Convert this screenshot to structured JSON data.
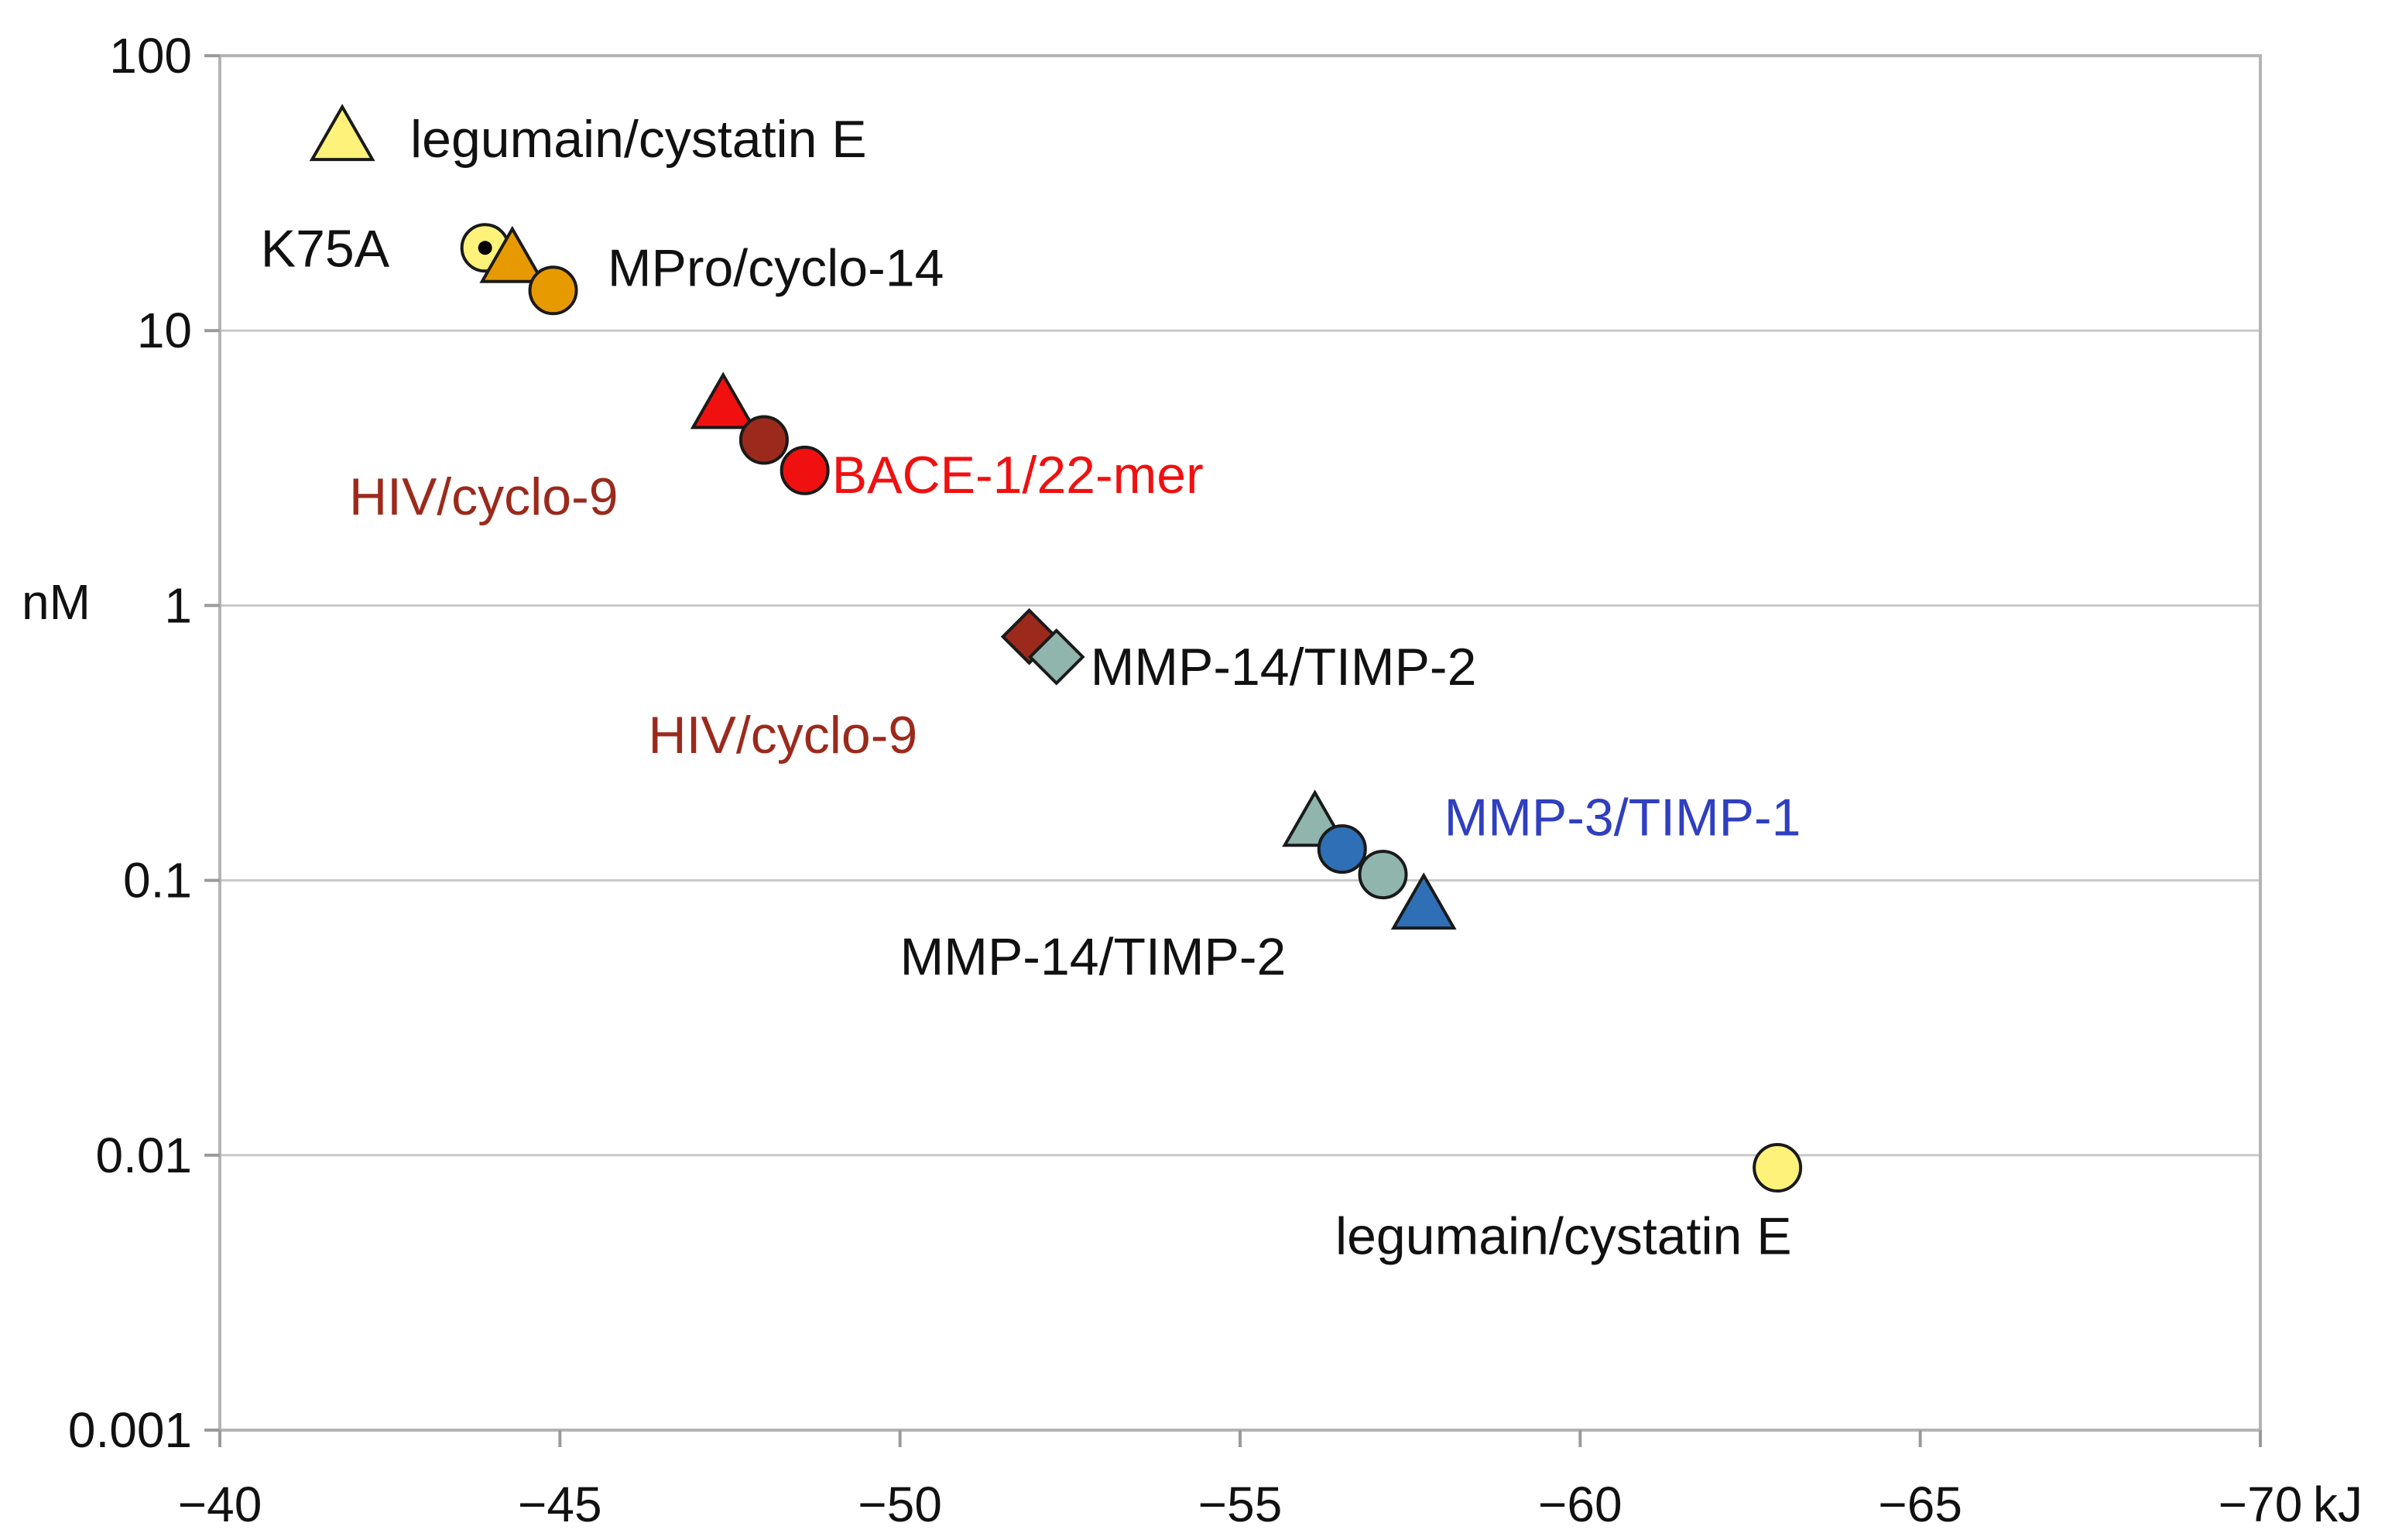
{
  "chart_data": {
    "type": "scatter",
    "title": "",
    "xlabel": "kJ",
    "ylabel": "nM",
    "y_scale": "log",
    "xlim": [
      -40,
      -70
    ],
    "ylim": [
      0.001,
      100
    ],
    "x_ticks": [
      "−40",
      "−45",
      "−50",
      "−55",
      "−60",
      "−65",
      "−70"
    ],
    "x_tick_values": [
      -40,
      -45,
      -50,
      -55,
      -60,
      -65,
      -70
    ],
    "y_ticks": [
      "100",
      "10",
      "1",
      "0.1",
      "0.01",
      "0.001"
    ],
    "y_tick_values": [
      100,
      10,
      1,
      0.1,
      0.01,
      0.001
    ],
    "grid": "horizontal",
    "points": [
      {
        "x": -41.8,
        "y": 50,
        "shape": "triangle",
        "color": "#fff27a"
      },
      {
        "x": -43.9,
        "y": 20,
        "shape": "circle-dot",
        "color": "#fff27a"
      },
      {
        "x": -44.3,
        "y": 18,
        "shape": "triangle",
        "color": "#e69a00"
      },
      {
        "x": -44.9,
        "y": 14,
        "shape": "circle",
        "color": "#e69a00"
      },
      {
        "x": -47.4,
        "y": 5.3,
        "shape": "triangle",
        "color": "#f01010"
      },
      {
        "x": -48.0,
        "y": 4.0,
        "shape": "circle",
        "color": "#9b2a1c"
      },
      {
        "x": -48.6,
        "y": 3.1,
        "shape": "circle",
        "color": "#f01010"
      },
      {
        "x": -51.9,
        "y": 0.77,
        "shape": "diamond",
        "color": "#9b2a1c"
      },
      {
        "x": -52.3,
        "y": 0.65,
        "shape": "diamond",
        "color": "#8fb5ad"
      },
      {
        "x": -56.1,
        "y": 0.16,
        "shape": "triangle",
        "color": "#8fb5ad"
      },
      {
        "x": -56.5,
        "y": 0.13,
        "shape": "circle",
        "color": "#2f6fb5"
      },
      {
        "x": -57.1,
        "y": 0.105,
        "shape": "circle",
        "color": "#8fb5ad"
      },
      {
        "x": -57.7,
        "y": 0.08,
        "shape": "triangle",
        "color": "#2f6fb5"
      },
      {
        "x": -62.9,
        "y": 0.009,
        "shape": "circle",
        "color": "#fff27a"
      }
    ],
    "annotations": [
      {
        "text": "legumain/cystatin E",
        "x": -42.8,
        "y": 50,
        "color": "#111111"
      },
      {
        "text": "K75A",
        "x": -40.6,
        "y": 20,
        "color": "#111111"
      },
      {
        "text": "MPro/cyclo-14",
        "x": -45.7,
        "y": 17,
        "color": "#111111"
      },
      {
        "text": "HIV/cyclo-9",
        "x": -41.9,
        "y": 2.5,
        "color": "#9b2a1c"
      },
      {
        "text": "BACE-1/22-mer",
        "x": -49.0,
        "y": 3.0,
        "color": "#f01010"
      },
      {
        "text": "HIV/cyclo-9",
        "x": -46.3,
        "y": 0.34,
        "color": "#9b2a1c"
      },
      {
        "text": "MMP-14/TIMP-2",
        "x": -52.8,
        "y": 0.6,
        "color": "#111111"
      },
      {
        "text": "MMP-3/TIMP-1",
        "x": -58.0,
        "y": 0.17,
        "color": "#2f3fbf"
      },
      {
        "text": "MMP-14/TIMP-2",
        "x": -50.0,
        "y": 0.053,
        "color": "#111111"
      },
      {
        "text": "legumain/cystatin E",
        "x": -56.4,
        "y": 0.0051,
        "color": "#111111"
      }
    ]
  }
}
